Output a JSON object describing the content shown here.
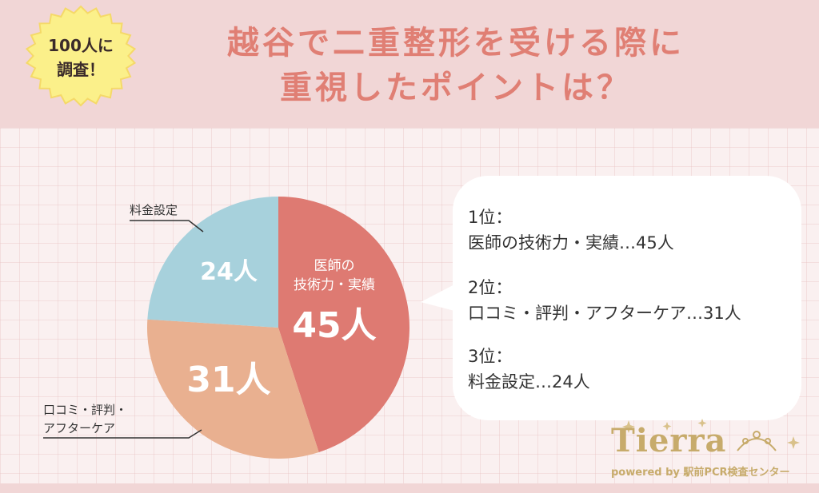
{
  "badge": {
    "line1": "100人に",
    "line2": "調査！"
  },
  "title": {
    "line1": "越谷で二重整形を受ける際に",
    "line2": "重視したポイントは？"
  },
  "chart_data": {
    "type": "pie",
    "title": "",
    "slices": [
      {
        "label_lines": [
          "医師の",
          "技術力・実績"
        ],
        "value": 45,
        "value_text": "45人",
        "color": "#de7a72"
      },
      {
        "label_lines": [
          "口コミ・評判・",
          "アフターケア"
        ],
        "value": 31,
        "value_text": "31人",
        "color": "#e9b090"
      },
      {
        "label_lines": [
          "料金設定"
        ],
        "value": 24,
        "value_text": "24人",
        "color": "#a7d1dc"
      }
    ],
    "total": 100,
    "unit": "人"
  },
  "ranking": [
    {
      "place": "1位：",
      "item": "医師の技術力・実績…45人"
    },
    {
      "place": "2位：",
      "item": "口コミ・評判・アフターケア…31人"
    },
    {
      "place": "3位：",
      "item": "料金設定…24人"
    }
  ],
  "logo": {
    "name": "Tierra",
    "tagline": "powered by 駅前PCR検査センター"
  }
}
